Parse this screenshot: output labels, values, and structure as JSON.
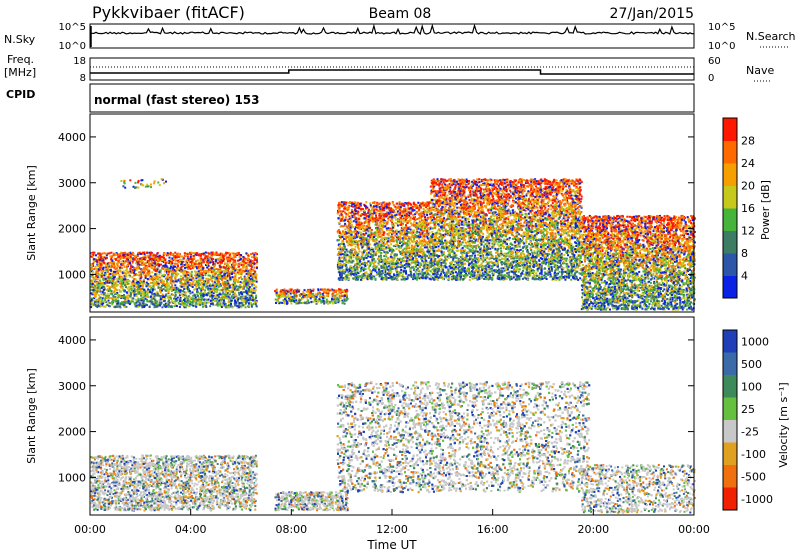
{
  "header": {
    "station": "Pykkvibaer (fitACF)",
    "beam": "Beam 08",
    "date": "27/Jan/2015"
  },
  "status_panels": {
    "nsky_label": "N.Sky",
    "nsky_ticks": [
      "10^5",
      "10^0"
    ],
    "nsearch_label": "N.Search",
    "nsearch_ticks": [
      "10^5",
      "10^0"
    ],
    "freq_label": "Freq.",
    "freq_unit": "[MHz]",
    "freq_ticks": [
      "18",
      "8"
    ],
    "nave_label": "Nave",
    "nave_ticks": [
      "60",
      "0"
    ],
    "cpid_label": "CPID",
    "cpid_text": "normal (fast stereo) 153"
  },
  "chart_data": [
    {
      "type": "heatmap",
      "name": "power-panel",
      "ylabel": "Slant Range [km]",
      "ylim": [
        180,
        4500
      ],
      "yticks": [
        "1000",
        "2000",
        "3000",
        "4000"
      ],
      "xlim": [
        "00:00",
        "24:00"
      ],
      "colorbar": {
        "label": "Power [dB]",
        "ticks": [
          "4",
          "8",
          "12",
          "16",
          "20",
          "24",
          "28"
        ],
        "colors": [
          "#0a22e6",
          "#2c56a8",
          "#3d7d64",
          "#46b43a",
          "#c7c81c",
          "#f5a000",
          "#ff6a00",
          "#ff1800"
        ]
      },
      "scatter_regions": [
        {
          "t0": 0.0,
          "t1": 6.6,
          "r0": 300,
          "r1": 1500,
          "level": 0.62
        },
        {
          "t0": 1.2,
          "t1": 3.0,
          "r0": 2900,
          "r1": 3100,
          "level": 0.15
        },
        {
          "t0": 7.3,
          "t1": 10.2,
          "r0": 380,
          "r1": 700,
          "level": 0.65
        },
        {
          "t0": 9.8,
          "t1": 13.5,
          "r0": 900,
          "r1": 2600,
          "level": 0.6
        },
        {
          "t0": 13.5,
          "t1": 19.5,
          "r0": 900,
          "r1": 3100,
          "level": 0.62
        },
        {
          "t0": 19.5,
          "t1": 24.0,
          "r0": 250,
          "r1": 2300,
          "level": 0.68
        }
      ]
    },
    {
      "type": "heatmap",
      "name": "velocity-panel",
      "ylabel": "Slant Range [km]",
      "xlabel": "Time UT",
      "ylim": [
        180,
        4500
      ],
      "yticks": [
        "1000",
        "2000",
        "3000",
        "4000"
      ],
      "xticks": [
        "00:00",
        "04:00",
        "08:00",
        "12:00",
        "16:00",
        "20:00",
        "00:00"
      ],
      "colorbar": {
        "label": "Velocity [m s⁻¹]",
        "ticks": [
          "1000",
          "500",
          "100",
          "25",
          "-25",
          "-100",
          "-500",
          "-1000"
        ],
        "colors": [
          "#1e3fb8",
          "#3a6aa8",
          "#3f8a5a",
          "#66c040",
          "#c8c8c8",
          "#e0a020",
          "#f07010",
          "#f02000"
        ]
      },
      "scatter_regions": [
        {
          "t0": 0.0,
          "t1": 6.6,
          "r0": 300,
          "r1": 1500,
          "level": 0.5
        },
        {
          "t0": 7.3,
          "t1": 10.2,
          "r0": 300,
          "r1": 700,
          "level": 0.62
        },
        {
          "t0": 9.8,
          "t1": 19.8,
          "r0": 700,
          "r1": 3100,
          "level": 0.5
        },
        {
          "t0": 19.5,
          "t1": 24.0,
          "r0": 250,
          "r1": 1300,
          "level": 0.3
        }
      ]
    }
  ]
}
